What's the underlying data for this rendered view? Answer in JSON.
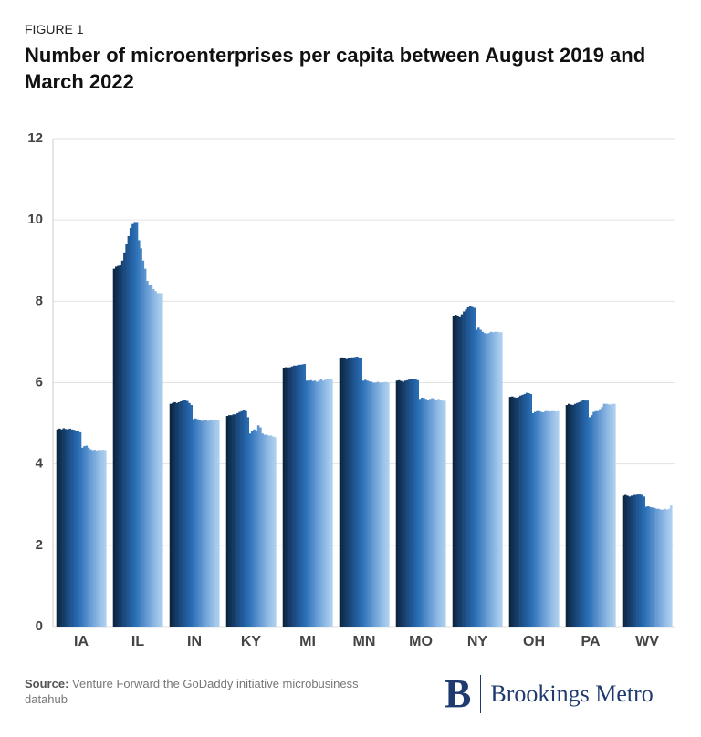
{
  "figure_label": "FIGURE 1",
  "chart_data": {
    "type": "bar",
    "title": "Number of microenterprises per capita between August 2019 and March 2022",
    "categories": [
      "IA",
      "IL",
      "IN",
      "KY",
      "MI",
      "MN",
      "MO",
      "NY",
      "OH",
      "PA",
      "WV"
    ],
    "ylim": [
      0,
      12
    ],
    "yticks": [
      0,
      2,
      4,
      6,
      8,
      10,
      12
    ],
    "grid": true,
    "series": [
      {
        "color": "#0c2640",
        "values": [
          4.85,
          8.8,
          5.48,
          5.18,
          6.35,
          6.6,
          6.05,
          7.65,
          5.65,
          5.45,
          3.22
        ]
      },
      {
        "color": "#0f2d4d",
        "values": [
          4.87,
          8.85,
          5.5,
          5.2,
          6.38,
          6.62,
          6.06,
          7.67,
          5.66,
          5.48,
          3.24
        ]
      },
      {
        "color": "#12345a",
        "values": [
          4.85,
          8.87,
          5.52,
          5.2,
          6.36,
          6.6,
          6.04,
          7.65,
          5.64,
          5.46,
          3.22
        ]
      },
      {
        "color": "#143b66",
        "values": [
          4.88,
          8.9,
          5.5,
          5.22,
          6.38,
          6.58,
          6.02,
          7.63,
          5.63,
          5.45,
          3.2
        ]
      },
      {
        "color": "#174272",
        "values": [
          4.86,
          9.0,
          5.52,
          5.22,
          6.4,
          6.6,
          6.05,
          7.68,
          5.65,
          5.48,
          3.22
        ]
      },
      {
        "color": "#1a497e",
        "values": [
          4.85,
          9.2,
          5.54,
          5.25,
          6.42,
          6.62,
          6.06,
          7.75,
          5.68,
          5.5,
          3.24
        ]
      },
      {
        "color": "#1d508a",
        "values": [
          4.87,
          9.4,
          5.56,
          5.28,
          6.42,
          6.62,
          6.08,
          7.8,
          5.7,
          5.52,
          3.24
        ]
      },
      {
        "color": "#205795",
        "values": [
          4.85,
          9.6,
          5.58,
          5.3,
          6.44,
          6.63,
          6.1,
          7.85,
          5.72,
          5.55,
          3.25
        ]
      },
      {
        "color": "#235e9f",
        "values": [
          4.84,
          9.8,
          5.55,
          5.32,
          6.44,
          6.64,
          6.1,
          7.88,
          5.75,
          5.58,
          3.25
        ]
      },
      {
        "color": "#2665a8",
        "values": [
          4.82,
          9.9,
          5.5,
          5.3,
          6.45,
          6.62,
          6.08,
          7.86,
          5.74,
          5.56,
          3.24
        ]
      },
      {
        "color": "#2a6cb1",
        "values": [
          4.8,
          9.95,
          5.45,
          5.15,
          6.46,
          6.6,
          6.06,
          7.84,
          5.72,
          5.56,
          3.2
        ]
      },
      {
        "color": "#2f73b8",
        "values": [
          4.78,
          9.95,
          5.1,
          4.75,
          6.05,
          6.05,
          5.6,
          7.3,
          5.25,
          5.15,
          2.95
        ]
      },
      {
        "color": "#3a7bbe",
        "values": [
          4.4,
          9.5,
          5.12,
          4.8,
          6.05,
          6.07,
          5.63,
          7.35,
          5.28,
          5.2,
          2.96
        ]
      },
      {
        "color": "#4583c4",
        "values": [
          4.44,
          9.3,
          5.1,
          4.85,
          6.06,
          6.05,
          5.62,
          7.3,
          5.3,
          5.28,
          2.94
        ]
      },
      {
        "color": "#508bc9",
        "values": [
          4.45,
          9.0,
          5.08,
          4.82,
          6.04,
          6.03,
          5.6,
          7.25,
          5.3,
          5.3,
          2.93
        ]
      },
      {
        "color": "#5b93ce",
        "values": [
          4.4,
          8.8,
          5.06,
          4.95,
          6.05,
          6.02,
          5.58,
          7.22,
          5.28,
          5.3,
          2.92
        ]
      },
      {
        "color": "#669bd3",
        "values": [
          4.36,
          8.5,
          5.07,
          4.9,
          6.02,
          6.0,
          5.6,
          7.2,
          5.27,
          5.35,
          2.9
        ]
      },
      {
        "color": "#71a3d8",
        "values": [
          4.34,
          8.4,
          5.08,
          4.75,
          6.05,
          6.0,
          5.62,
          7.22,
          5.3,
          5.4,
          2.9
        ]
      },
      {
        "color": "#7cabdc",
        "values": [
          4.35,
          8.4,
          5.06,
          4.72,
          6.08,
          6.02,
          5.6,
          7.25,
          5.3,
          5.48,
          2.88
        ]
      },
      {
        "color": "#87b3e0",
        "values": [
          4.33,
          8.3,
          5.07,
          4.72,
          6.05,
          6.0,
          5.58,
          7.24,
          5.29,
          5.48,
          2.88
        ]
      },
      {
        "color": "#91bbe4",
        "values": [
          4.35,
          8.25,
          5.08,
          4.7,
          6.07,
          6.0,
          5.6,
          7.25,
          5.3,
          5.47,
          2.9
        ]
      },
      {
        "color": "#9bc2e8",
        "values": [
          4.34,
          8.2,
          5.07,
          4.7,
          6.08,
          6.01,
          5.58,
          7.25,
          5.3,
          5.46,
          2.88
        ]
      },
      {
        "color": "#a4c9eb",
        "values": [
          4.35,
          8.2,
          5.08,
          4.68,
          6.1,
          6.02,
          5.56,
          7.24,
          5.29,
          5.48,
          2.9
        ]
      },
      {
        "color": "#acceee",
        "values": [
          4.34,
          8.2,
          5.08,
          4.66,
          6.08,
          6.0,
          5.55,
          7.24,
          5.3,
          5.48,
          2.98
        ]
      }
    ]
  },
  "source": {
    "label": "Source:",
    "text": "Venture Forward the GoDaddy initiative microbusiness datahub"
  },
  "logo": {
    "mark": "B",
    "text": "Brookings Metro"
  }
}
